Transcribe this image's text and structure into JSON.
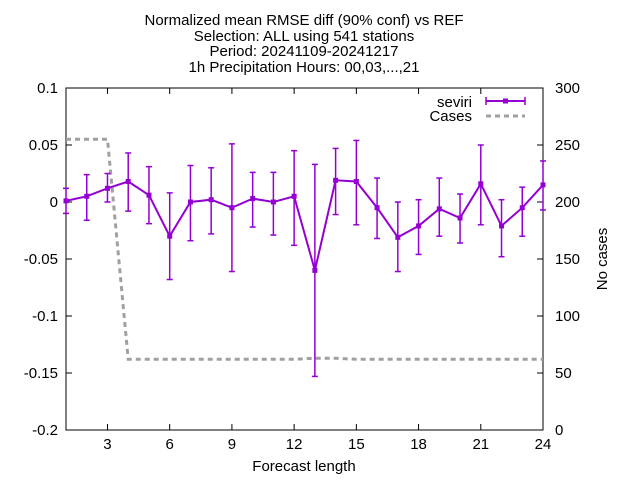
{
  "chart_data": {
    "type": "line",
    "title_lines": [
      "Normalized mean RMSE diff (90% conf) vs REF",
      "Selection: ALL using   541 stations",
      "Period: 20241109-20241217",
      "1h Precipitation   Hours: 00,03,...,21"
    ],
    "xlabel": "Forecast length",
    "ylabel": "",
    "y2label": "No cases",
    "xlim": [
      1,
      24
    ],
    "ylim": [
      -0.2,
      0.1
    ],
    "y2lim": [
      0,
      300
    ],
    "xticks": [
      3,
      6,
      9,
      12,
      15,
      18,
      21,
      24
    ],
    "yticks": [
      -0.2,
      -0.15,
      -0.1,
      -0.05,
      0,
      0.05,
      0.1
    ],
    "y2ticks": [
      0,
      50,
      100,
      150,
      200,
      250,
      300
    ],
    "ytick_labels": [
      "-0.2",
      "-0.15",
      "-0.1",
      "-0.05",
      "0",
      "0.05",
      "0.1"
    ],
    "grid": false,
    "legend_position": "top-right",
    "series": [
      {
        "name": "seviri",
        "axis": "y1",
        "color": "#9400d3",
        "style": "line-errorbars",
        "x": [
          1,
          2,
          3,
          4,
          5,
          6,
          7,
          8,
          9,
          10,
          11,
          12,
          13,
          14,
          15,
          16,
          17,
          18,
          19,
          20,
          21,
          22,
          23,
          24
        ],
        "values": [
          0.001,
          0.005,
          0.012,
          0.018,
          0.006,
          -0.03,
          0.0,
          0.002,
          -0.005,
          0.003,
          0.0,
          0.005,
          -0.06,
          0.019,
          0.018,
          -0.005,
          -0.031,
          -0.021,
          -0.006,
          -0.014,
          0.016,
          -0.021,
          -0.005,
          0.015
        ],
        "lower": [
          -0.01,
          -0.016,
          0.0,
          -0.008,
          -0.019,
          -0.068,
          -0.034,
          -0.028,
          -0.061,
          -0.022,
          -0.029,
          -0.038,
          -0.153,
          -0.011,
          -0.02,
          -0.032,
          -0.061,
          -0.046,
          -0.03,
          -0.036,
          -0.02,
          -0.048,
          -0.03,
          -0.007
        ],
        "upper": [
          0.012,
          0.024,
          0.025,
          0.043,
          0.031,
          0.008,
          0.032,
          0.03,
          0.051,
          0.026,
          0.026,
          0.045,
          0.033,
          0.047,
          0.054,
          0.021,
          0.0,
          0.002,
          0.021,
          0.007,
          0.05,
          0.002,
          0.013,
          0.036
        ]
      },
      {
        "name": "Cases",
        "axis": "y2",
        "color": "#a0a0a0",
        "style": "dashed",
        "x": [
          1,
          2,
          3,
          4,
          5,
          6,
          7,
          8,
          9,
          10,
          11,
          12,
          13,
          14,
          15,
          16,
          17,
          18,
          19,
          20,
          21,
          22,
          23,
          24
        ],
        "values": [
          255,
          255,
          255,
          62,
          62,
          62,
          62,
          62,
          62,
          62,
          62,
          62,
          63,
          63,
          62,
          62,
          62,
          62,
          62,
          62,
          62,
          62,
          62,
          62
        ]
      }
    ]
  }
}
